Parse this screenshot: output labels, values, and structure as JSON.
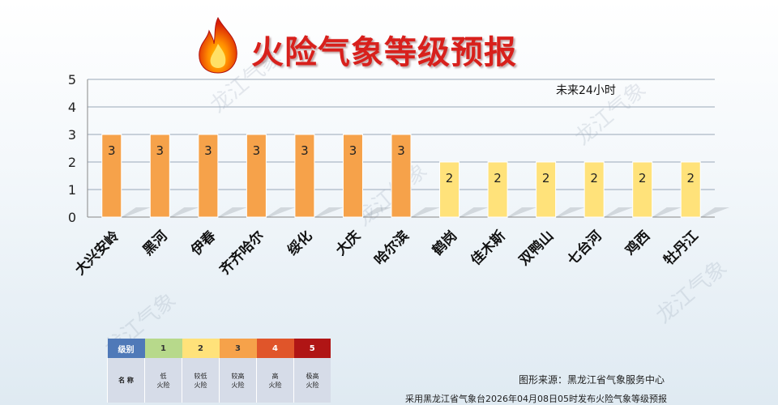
{
  "page": {
    "title": "火险气象等级预报",
    "watermark": "龙江气象",
    "source": "图形来源：黑龙江省气象服务中心",
    "publish": "采用黑龙江省气象台2026年04月08日05时发布火险气象等级预报"
  },
  "chart_data": {
    "type": "bar",
    "annotation": "未来24小时",
    "categories": [
      "大兴安岭",
      "黑河",
      "伊春",
      "齐齐哈尔",
      "绥化",
      "大庆",
      "哈尔滨",
      "鹤岗",
      "佳木斯",
      "双鸭山",
      "七台河",
      "鸡西",
      "牡丹江"
    ],
    "values": [
      3,
      3,
      3,
      3,
      3,
      3,
      3,
      2,
      2,
      2,
      2,
      2,
      2
    ],
    "ylim": [
      0,
      5
    ],
    "yticks": [
      0,
      1,
      2,
      3,
      4,
      5
    ],
    "grid": true,
    "level_colors": {
      "1": "#b7d98b",
      "2": "#ffe27a",
      "3": "#f6a24a",
      "4": "#e0552a",
      "5": "#b01515"
    }
  },
  "legend": {
    "header_label": "级别",
    "row_label": "名 称",
    "levels": [
      {
        "level": "1",
        "name_line1": "低",
        "name_line2": "火险",
        "color": "#b7d98b"
      },
      {
        "level": "2",
        "name_line1": "较低",
        "name_line2": "火险",
        "color": "#ffe27a"
      },
      {
        "level": "3",
        "name_line1": "较高",
        "name_line2": "火险",
        "color": "#f6a24a"
      },
      {
        "level": "4",
        "name_line1": "高",
        "name_line2": "火险",
        "color": "#e0552a"
      },
      {
        "level": "5",
        "name_line1": "极高",
        "name_line2": "火险",
        "color": "#b01515"
      }
    ]
  }
}
